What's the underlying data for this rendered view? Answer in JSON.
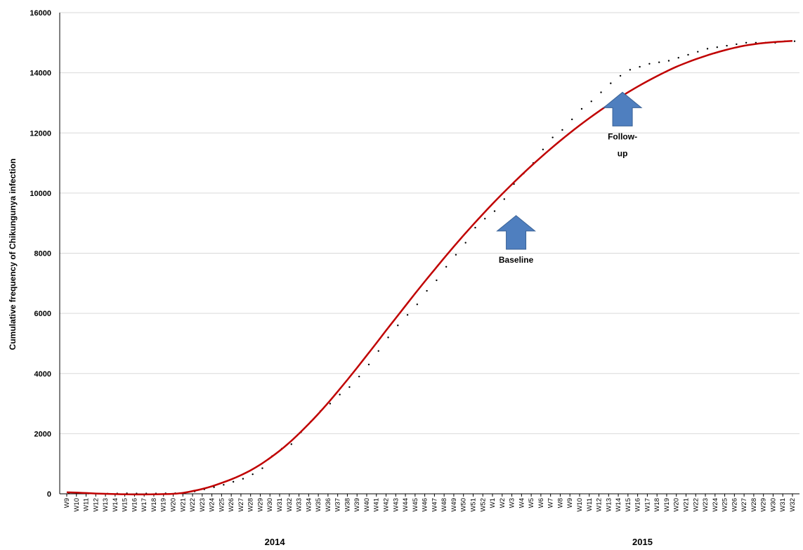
{
  "chart_data": {
    "type": "line",
    "ylabel": "Cumulative frequency of Chikungunya infection",
    "xlabel": "",
    "ylim": [
      0,
      16000
    ],
    "yticks": [
      0,
      2000,
      4000,
      6000,
      8000,
      10000,
      12000,
      14000,
      16000
    ],
    "grid": "horizontal",
    "legend": "none",
    "categories": [
      "W9",
      "W10",
      "W11",
      "W12",
      "W13",
      "W14",
      "W15",
      "W16",
      "W17",
      "W18",
      "W19",
      "W20",
      "W21",
      "W22",
      "W23",
      "W24",
      "W25",
      "W26",
      "W27",
      "W28",
      "W29",
      "W30",
      "W31",
      "W32",
      "W33",
      "W34",
      "W35",
      "W36",
      "W37",
      "W38",
      "W39",
      "W40",
      "W41",
      "W42",
      "W43",
      "W44",
      "W45",
      "W46",
      "W47",
      "W48",
      "W49",
      "W50",
      "W51",
      "W52",
      "W1",
      "W2",
      "W3",
      "W4",
      "W5",
      "W6",
      "W7",
      "W8",
      "W9",
      "W10",
      "W11",
      "W12",
      "W13",
      "W14",
      "W15",
      "W16",
      "W17",
      "W18",
      "W19",
      "W20",
      "W21",
      "W22",
      "W23",
      "W24",
      "W25",
      "W26",
      "W27",
      "W28",
      "W29",
      "W30",
      "W31",
      "W32"
    ],
    "year_labels": [
      {
        "label": "2014",
        "start": 0,
        "end": 43
      },
      {
        "label": "2015",
        "start": 44,
        "end": 75
      }
    ],
    "series": [
      {
        "style": "dots",
        "values": [
          30,
          20,
          10,
          5,
          5,
          10,
          15,
          10,
          10,
          10,
          15,
          20,
          40,
          80,
          150,
          220,
          300,
          400,
          500,
          650,
          850,
          1250,
          1500,
          1650,
          2050,
          2400,
          2750,
          3000,
          3300,
          3550,
          3900,
          4300,
          4750,
          5200,
          5600,
          5950,
          6300,
          6750,
          7100,
          7550,
          7950,
          8350,
          8850,
          9150,
          9400,
          9800,
          10300,
          10650,
          11000,
          11450,
          11850,
          12100,
          12450,
          12800,
          13050,
          13350,
          13650,
          13900,
          14100,
          14200,
          14300,
          14350,
          14400,
          14500,
          14600,
          14700,
          14800,
          14850,
          14900,
          14950,
          15000,
          15000,
          15000,
          15000,
          15050,
          15050
        ],
        "color": "#000000"
      },
      {
        "style": "fit-line",
        "values": [
          50,
          40,
          25,
          10,
          0,
          -10,
          -15,
          -20,
          -20,
          -15,
          -10,
          0,
          30,
          90,
          160,
          250,
          360,
          480,
          620,
          780,
          970,
          1190,
          1430,
          1700,
          2000,
          2320,
          2660,
          3020,
          3400,
          3790,
          4190,
          4600,
          5010,
          5430,
          5840,
          6250,
          6660,
          7060,
          7450,
          7840,
          8220,
          8590,
          8950,
          9300,
          9640,
          9970,
          10290,
          10600,
          10900,
          11190,
          11470,
          11740,
          12000,
          12250,
          12490,
          12720,
          12940,
          13150,
          13350,
          13540,
          13720,
          13890,
          14050,
          14200,
          14330,
          14450,
          14560,
          14660,
          14750,
          14830,
          14900,
          14950,
          14990,
          15020,
          15040,
          15060
        ],
        "color": "#c00000"
      }
    ],
    "annotations": [
      {
        "text": "Baseline",
        "category": "W3",
        "category_index": 46,
        "value": 9300
      },
      {
        "text": "Follow-up",
        "category": "W14",
        "category_index": 57,
        "value": 13400
      }
    ]
  }
}
